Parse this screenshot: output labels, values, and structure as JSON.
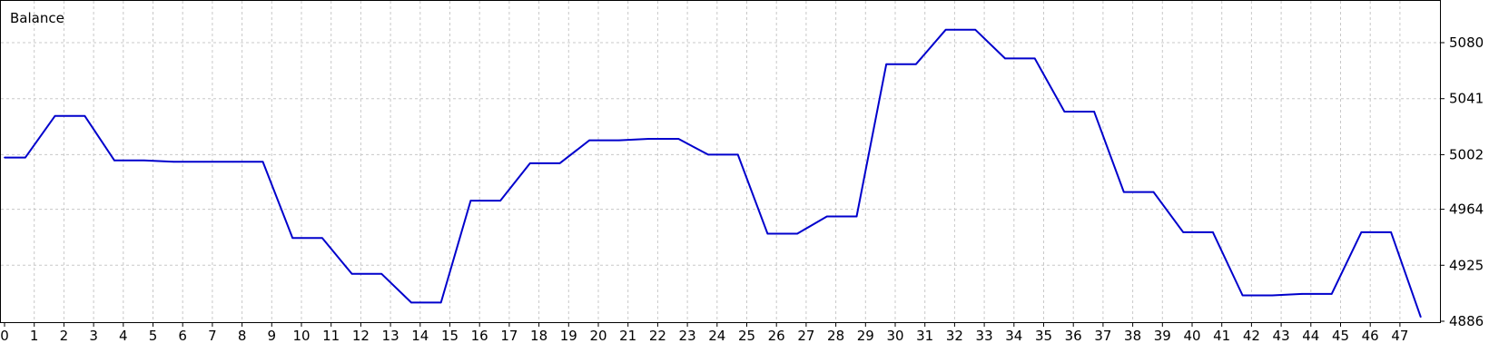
{
  "chart_data": {
    "type": "line",
    "title": "Balance",
    "xlabel": "",
    "ylabel": "",
    "x_ticks": [
      "0",
      "1",
      "2",
      "3",
      "4",
      "5",
      "6",
      "7",
      "8",
      "9",
      "10",
      "11",
      "12",
      "13",
      "14",
      "15",
      "16",
      "17",
      "18",
      "19",
      "20",
      "21",
      "22",
      "23",
      "24",
      "25",
      "26",
      "27",
      "28",
      "29",
      "30",
      "31",
      "32",
      "33",
      "34",
      "35",
      "36",
      "37",
      "38",
      "39",
      "40",
      "41",
      "42",
      "43",
      "44",
      "45",
      "46",
      "47"
    ],
    "y_ticks": [
      "4886",
      "4925",
      "4964",
      "5002",
      "5041",
      "5080"
    ],
    "ylim": [
      4886,
      5110
    ],
    "grid": true,
    "series": [
      {
        "color": "#0000cc",
        "x": [
          0,
          0.7,
          1.7,
          2.7,
          3.7,
          4.7,
          5.7,
          6.7,
          7.7,
          8.7,
          9.7,
          10.7,
          11.7,
          12.7,
          13.7,
          14.7,
          15.7,
          16.7,
          17.7,
          18.7,
          19.7,
          20.7,
          21.7,
          22.7,
          23.7,
          24.7,
          25.7,
          26.7,
          27.7,
          28.7,
          29.7,
          30.7,
          31.7,
          32.7,
          33.7,
          34.7,
          35.7,
          36.7,
          37.7,
          38.7,
          39.7,
          40.7,
          41.7,
          42.7,
          43.7,
          44.7,
          45.7,
          46.7,
          47.7
        ],
        "values": [
          5000,
          5000,
          5029,
          5029,
          4998,
          4998,
          4997,
          4997,
          4997,
          4997,
          4944,
          4944,
          4919,
          4919,
          4899,
          4899,
          4970,
          4970,
          4996,
          4996,
          5012,
          5012,
          5013,
          5013,
          5002,
          5002,
          4947,
          4947,
          4959,
          4959,
          5065,
          5065,
          5089,
          5089,
          5069,
          5069,
          5032,
          5032,
          4976,
          4976,
          4948,
          4948,
          4904,
          4904,
          4905,
          4905,
          4948,
          4948,
          4889
        ]
      }
    ]
  }
}
